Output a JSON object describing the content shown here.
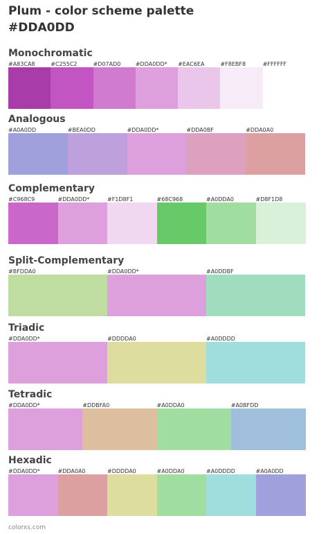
{
  "header": {
    "title": "Plum - color scheme palette",
    "subtitle": "#DDA0DD"
  },
  "sections": [
    {
      "name": "Monochromatic",
      "swatches": [
        {
          "label": "#A83CA8",
          "color": "#A83CA8"
        },
        {
          "label": "#C255C2",
          "color": "#C255C2"
        },
        {
          "label": "#D07AD0",
          "color": "#D07AD0"
        },
        {
          "label": "#DDA0DD*",
          "color": "#DDA0DD"
        },
        {
          "label": "#EAC6EA",
          "color": "#EAC6EA"
        },
        {
          "label": "#F8EBF8",
          "color": "#F8EBF8"
        },
        {
          "label": "#FFFFFF",
          "color": "#FFFFFF"
        }
      ]
    },
    {
      "name": "Analogous",
      "swatches": [
        {
          "label": "#A0A0DD",
          "color": "#A0A0DD"
        },
        {
          "label": "#BEA0DD",
          "color": "#BEA0DD"
        },
        {
          "label": "#DDA0DD*",
          "color": "#DDA0DD"
        },
        {
          "label": "#DDA0BF",
          "color": "#DDA0BF"
        },
        {
          "label": "#DDA0A0",
          "color": "#DDA0A0"
        }
      ]
    },
    {
      "name": "Complementary",
      "swatches": [
        {
          "label": "#C968C9",
          "color": "#C968C9"
        },
        {
          "label": "#DDA0DD*",
          "color": "#DDA0DD"
        },
        {
          "label": "#F1D8F1",
          "color": "#F1D8F1"
        },
        {
          "label": "#68C968",
          "color": "#68C968"
        },
        {
          "label": "#A0DDA0",
          "color": "#A0DDA0"
        },
        {
          "label": "#D8F1D8",
          "color": "#D8F1D8"
        }
      ]
    },
    {
      "name": "Split-Complementary",
      "swatches": [
        {
          "label": "#BFDDA0",
          "color": "#BFDDA0"
        },
        {
          "label": "#DDA0DD*",
          "color": "#DDA0DD"
        },
        {
          "label": "#A0DDBF",
          "color": "#A0DDBF"
        }
      ]
    },
    {
      "name": "Triadic",
      "swatches": [
        {
          "label": "#DDA0DD*",
          "color": "#DDA0DD"
        },
        {
          "label": "#DDDDA0",
          "color": "#DDDDA0"
        },
        {
          "label": "#A0DDDD",
          "color": "#A0DDDD"
        }
      ]
    },
    {
      "name": "Tetradic",
      "swatches": [
        {
          "label": "#DDA0DD*",
          "color": "#DDA0DD"
        },
        {
          "label": "#DDBFA0",
          "color": "#DDBFA0"
        },
        {
          "label": "#A0DDA0",
          "color": "#A0DDA0"
        },
        {
          "label": "#A0BFDD",
          "color": "#A0BFDD"
        }
      ]
    },
    {
      "name": "Hexadic",
      "swatches": [
        {
          "label": "#DDA0DD*",
          "color": "#DDA0DD"
        },
        {
          "label": "#DDA0A0",
          "color": "#DDA0A0"
        },
        {
          "label": "#DDDDA0",
          "color": "#DDDDA0"
        },
        {
          "label": "#A0DDA0",
          "color": "#A0DDA0"
        },
        {
          "label": "#A0DDDD",
          "color": "#A0DDDD"
        },
        {
          "label": "#A0A0DD",
          "color": "#A0A0DD"
        }
      ]
    }
  ],
  "footer": "colorxs.com"
}
